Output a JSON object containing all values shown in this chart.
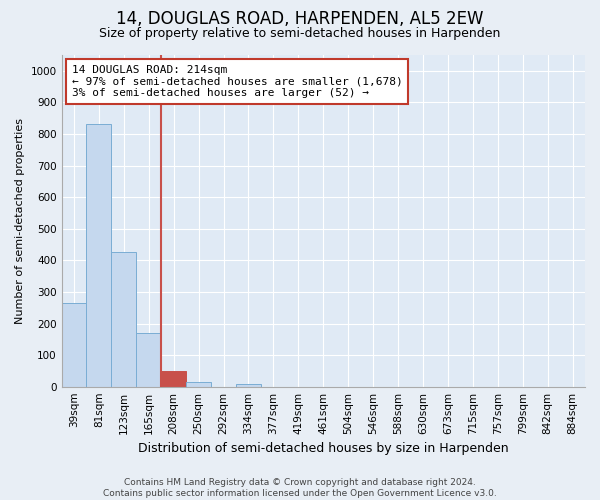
{
  "title": "14, DOUGLAS ROAD, HARPENDEN, AL5 2EW",
  "subtitle": "Size of property relative to semi-detached houses in Harpenden",
  "xlabel": "Distribution of semi-detached houses by size in Harpenden",
  "ylabel": "Number of semi-detached properties",
  "bar_labels": [
    "39sqm",
    "81sqm",
    "123sqm",
    "165sqm",
    "208sqm",
    "250sqm",
    "292sqm",
    "334sqm",
    "377sqm",
    "419sqm",
    "461sqm",
    "504sqm",
    "546sqm",
    "588sqm",
    "630sqm",
    "673sqm",
    "715sqm",
    "757sqm",
    "799sqm",
    "842sqm",
    "884sqm"
  ],
  "bar_values": [
    265,
    830,
    425,
    170,
    50,
    15,
    0,
    10,
    0,
    0,
    0,
    0,
    0,
    0,
    0,
    0,
    0,
    0,
    0,
    0,
    0
  ],
  "bar_color": "#c5d8ee",
  "bar_edge_color": "#7aadd4",
  "highlight_bar_index": 4,
  "highlight_bar_color": "#c8504a",
  "highlight_bar_edge_color": "#c8504a",
  "annotation_text_line1": "14 DOUGLAS ROAD: 214sqm",
  "annotation_text_line2": "← 97% of semi-detached houses are smaller (1,678)",
  "annotation_text_line3": "3% of semi-detached houses are larger (52) →",
  "annotation_box_color": "#ffffff",
  "annotation_box_edge_color": "#c0392b",
  "red_line_x": 3.5,
  "ylim": [
    0,
    1050
  ],
  "yticks": [
    0,
    100,
    200,
    300,
    400,
    500,
    600,
    700,
    800,
    900,
    1000
  ],
  "background_color": "#e8eef5",
  "plot_bg_color": "#e0eaf5",
  "grid_color": "#ffffff",
  "footer_text": "Contains HM Land Registry data © Crown copyright and database right 2024.\nContains public sector information licensed under the Open Government Licence v3.0.",
  "title_fontsize": 12,
  "subtitle_fontsize": 9,
  "xlabel_fontsize": 9,
  "ylabel_fontsize": 8,
  "tick_fontsize": 7.5,
  "annotation_fontsize": 8,
  "footer_fontsize": 6.5
}
